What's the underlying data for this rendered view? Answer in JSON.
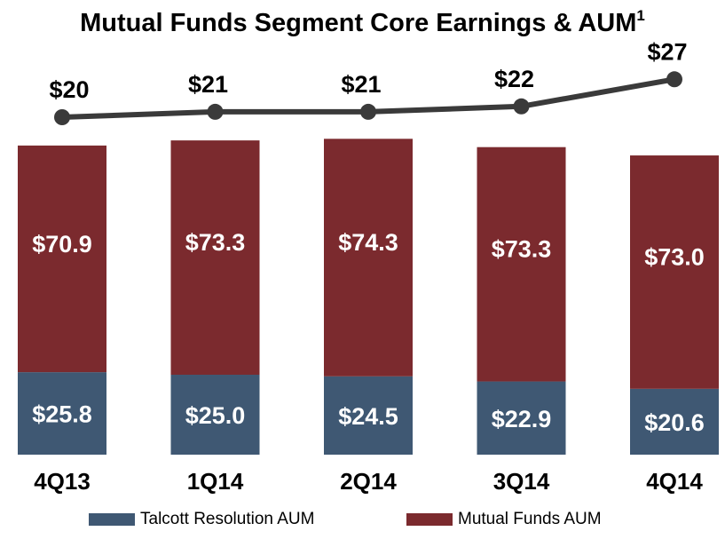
{
  "chart_data": {
    "type": "bar",
    "title": "Mutual Funds Segment Core Earnings & AUM",
    "title_footnote": "1",
    "categories": [
      "4Q13",
      "1Q14",
      "2Q14",
      "3Q14",
      "4Q14"
    ],
    "series": [
      {
        "name": "Talcott Resolution AUM",
        "kind": "stacked-bar",
        "color": "#3f5873",
        "values": [
          25.8,
          25.0,
          24.5,
          22.9,
          20.6
        ],
        "labels": [
          "$25.8",
          "$25.0",
          "$24.5",
          "$22.9",
          "$20.6"
        ]
      },
      {
        "name": "Mutual Funds AUM",
        "kind": "stacked-bar",
        "color": "#7b2a2e",
        "values": [
          70.9,
          73.3,
          74.3,
          73.3,
          73.0
        ],
        "labels": [
          "$70.9",
          "$73.3",
          "$74.3",
          "$73.3",
          "$73.0"
        ]
      },
      {
        "kind": "line",
        "color": "#3a3a3a",
        "values": [
          20,
          21,
          21,
          22,
          27
        ],
        "labels": [
          "$20",
          "$21",
          "$21",
          "$22",
          "$27"
        ]
      }
    ],
    "legend_position": "bottom",
    "grid": false
  }
}
